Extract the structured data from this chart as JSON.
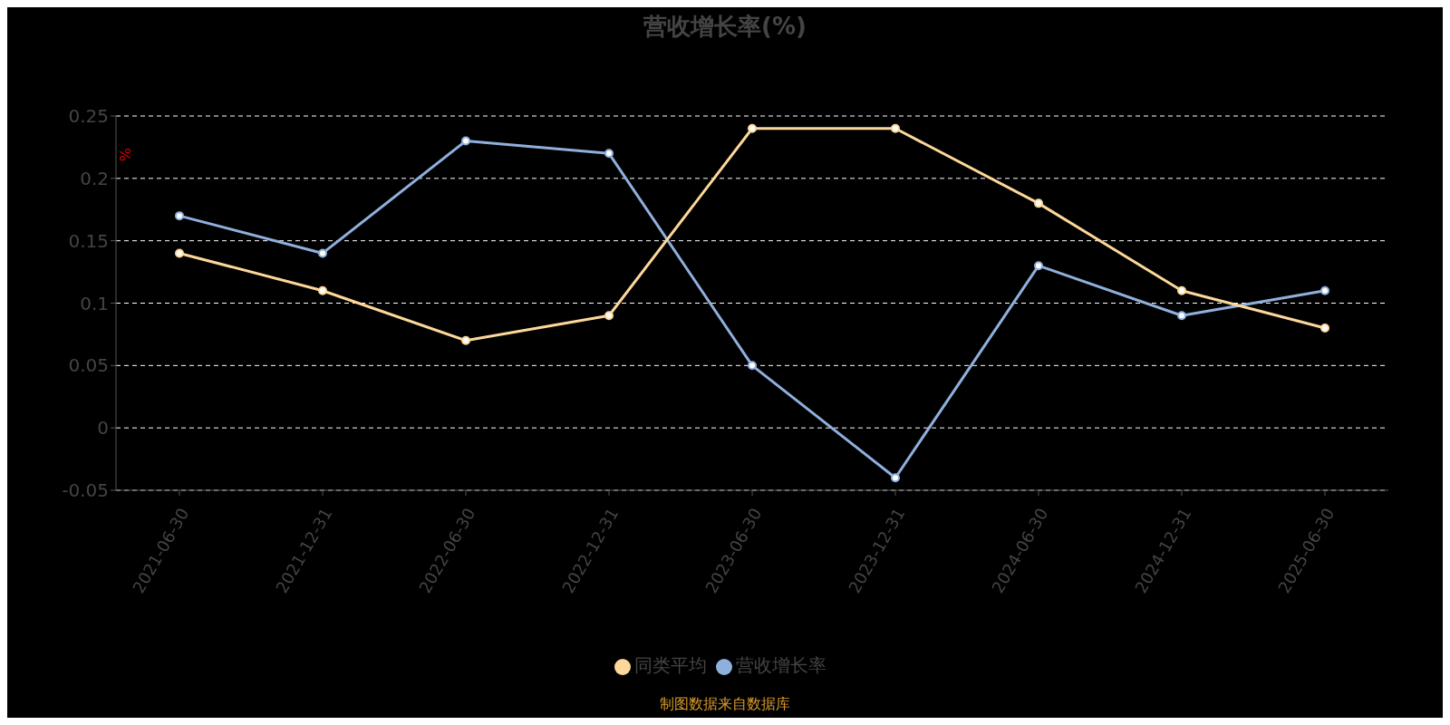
{
  "chart_data": {
    "type": "line",
    "title": "营收增长率(%)",
    "ylabel": "%",
    "categories": [
      "2021-06-30",
      "2021-12-31",
      "2022-06-30",
      "2022-12-31",
      "2023-06-30",
      "2023-12-31",
      "2024-06-30",
      "2024-12-31",
      "2025-06-30"
    ],
    "series": [
      {
        "name": "营收增长率",
        "color": "#8fb0dd",
        "values": [
          0.17,
          0.14,
          0.23,
          0.22,
          0.05,
          -0.04,
          0.13,
          0.09,
          0.11
        ]
      },
      {
        "name": "同类平均",
        "color": "#fdd89a",
        "values": [
          0.14,
          0.11,
          0.07,
          0.09,
          0.24,
          0.24,
          0.18,
          0.11,
          0.08
        ]
      }
    ],
    "ylim": [
      -0.05,
      0.25
    ],
    "yticks": [
      -0.05,
      0,
      0.05,
      0.1,
      0.15,
      0.2,
      0.25
    ],
    "grid": "y",
    "legend": "bottom",
    "marker": "circle",
    "line_style": "solid",
    "annotations": [
      "制图数据来自数据库"
    ]
  }
}
